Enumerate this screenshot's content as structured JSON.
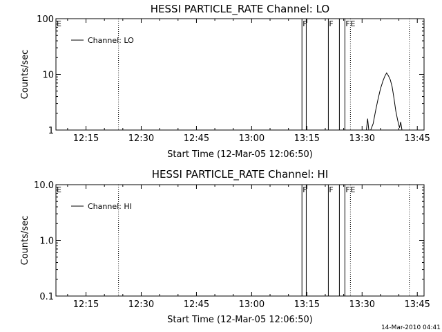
{
  "chart_data": [
    {
      "type": "line",
      "title": "HESSI PARTICLE_RATE Channel: LO",
      "xlabel": "Start Time (12-Mar-05 12:06:50)",
      "ylabel": "Counts/sec",
      "yscale": "log",
      "ylim": [
        1,
        100
      ],
      "xlim": [
        "12:06:50",
        "13:46:50"
      ],
      "x_ticks": [
        "12:15",
        "12:30",
        "12:45",
        "13:00",
        "13:15",
        "13:30",
        "13:45"
      ],
      "y_ticks": [
        "1",
        "10",
        "100"
      ],
      "legend": {
        "position": "top-left",
        "label": "Channel: LO"
      },
      "flag_labels": [
        {
          "label": "E",
          "time": "12:06:50"
        },
        {
          "label": "F",
          "time": "13:13:40"
        },
        {
          "label": "F",
          "time": "13:20:50"
        },
        {
          "label": "F",
          "time": "13:25:20"
        },
        {
          "label": "E",
          "time": "13:26:40"
        }
      ],
      "dotted_lines": [
        "12:23:50",
        "13:26:50",
        "13:42:50"
      ],
      "solid_lines": [
        "13:13:40",
        "13:14:50",
        "13:20:50",
        "13:23:50",
        "13:25:20"
      ],
      "series": [
        {
          "name": "Channel: LO",
          "x": [
            "13:31:10",
            "13:31:30",
            "13:31:50",
            "13:32:20",
            "13:33:00",
            "13:33:40",
            "13:34:20",
            "13:35:00",
            "13:35:40",
            "13:36:10",
            "13:36:40",
            "13:37:10",
            "13:37:40",
            "13:38:10",
            "13:38:40",
            "13:39:10",
            "13:39:40",
            "13:40:10",
            "13:40:30",
            "13:40:50"
          ],
          "y": [
            1.0,
            1.6,
            1.0,
            1.0,
            1.3,
            2.2,
            3.6,
            5.5,
            7.6,
            9.2,
            10.6,
            9.4,
            8.0,
            6.0,
            3.7,
            2.2,
            1.5,
            1.1,
            1.4,
            1.0
          ]
        }
      ]
    },
    {
      "type": "line",
      "title": "HESSI PARTICLE_RATE Channel: HI",
      "xlabel": "Start Time (12-Mar-05 12:06:50)",
      "ylabel": "Counts/sec",
      "yscale": "log",
      "ylim": [
        0.1,
        10
      ],
      "xlim": [
        "12:06:50",
        "13:46:50"
      ],
      "x_ticks": [
        "12:15",
        "12:30",
        "12:45",
        "13:00",
        "13:15",
        "13:30",
        "13:45"
      ],
      "y_ticks": [
        "0.1",
        "1.0",
        "10.0"
      ],
      "legend": {
        "position": "top-left",
        "label": "Channel: HI"
      },
      "flag_labels": [
        {
          "label": "E",
          "time": "12:06:50"
        },
        {
          "label": "F",
          "time": "13:13:40"
        },
        {
          "label": "F",
          "time": "13:20:50"
        },
        {
          "label": "F",
          "time": "13:25:20"
        },
        {
          "label": "E",
          "time": "13:26:40"
        }
      ],
      "dotted_lines": [
        "12:23:50",
        "13:26:50",
        "13:42:50"
      ],
      "solid_lines": [
        "13:13:40",
        "13:14:50",
        "13:20:50",
        "13:23:50",
        "13:25:20"
      ],
      "series": []
    }
  ],
  "footer": {
    "timestamp": "14-Mar-2010 04:41"
  }
}
